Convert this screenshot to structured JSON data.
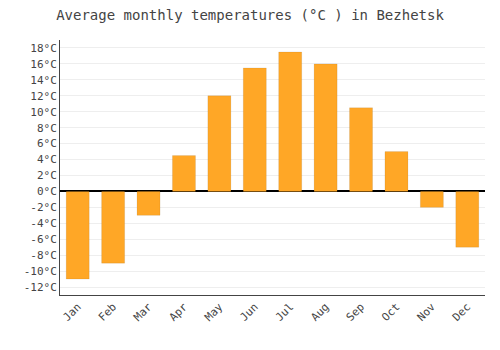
{
  "chart_data": {
    "type": "bar",
    "title": "Average monthly temperatures (°C ) in Bezhetsk",
    "categories": [
      "Jan",
      "Feb",
      "Mar",
      "Apr",
      "May",
      "Jun",
      "Jul",
      "Aug",
      "Sep",
      "Oct",
      "Nov",
      "Dec"
    ],
    "values": [
      -11,
      -9,
      -3,
      4.5,
      12,
      15.5,
      17.5,
      16,
      10.5,
      5,
      -2,
      -7
    ],
    "color": "#FFA726",
    "ylim": [
      -13,
      19
    ],
    "yticks": [
      {
        "value": -12,
        "label": "-12°C"
      },
      {
        "value": -10,
        "label": "-10°C"
      },
      {
        "value": -8,
        "label": "-8°C"
      },
      {
        "value": -6,
        "label": "-6°C"
      },
      {
        "value": -4,
        "label": "-4°C"
      },
      {
        "value": -2,
        "label": "-2°C"
      },
      {
        "value": 0,
        "label": "0°C"
      },
      {
        "value": 2,
        "label": "2°C"
      },
      {
        "value": 4,
        "label": "4°C"
      },
      {
        "value": 6,
        "label": "6°C"
      },
      {
        "value": 8,
        "label": "8°C"
      },
      {
        "value": 10,
        "label": "10°C"
      },
      {
        "value": 12,
        "label": "12°C"
      },
      {
        "value": 14,
        "label": "14°C"
      },
      {
        "value": 16,
        "label": "16°C"
      },
      {
        "value": 18,
        "label": "18°C"
      }
    ],
    "grid": true
  }
}
